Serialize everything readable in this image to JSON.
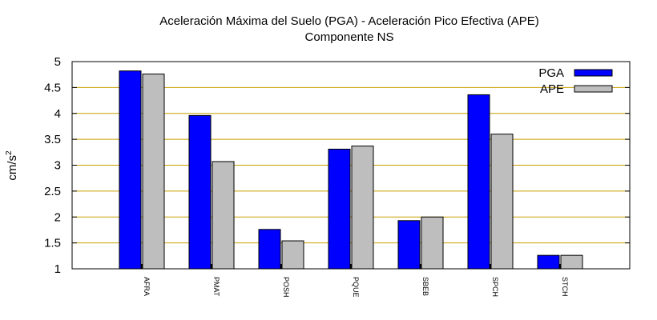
{
  "chart_data": {
    "type": "bar",
    "title": "Aceleración Máxima del Suelo (PGA) -  Aceleración Pico Efectiva (APE)",
    "subtitle": "Componente NS",
    "ylabel": "cm/s",
    "ylabel_superscript": "2",
    "xlabel": "",
    "ylim": [
      1,
      5
    ],
    "yticks": [
      "1",
      "1.5",
      "2",
      "2.5",
      "3",
      "3.5",
      "4",
      "4.5",
      "5"
    ],
    "grid": "horizontal",
    "legend_position": "top-right",
    "categories": [
      "AFRA",
      "PMAT",
      "POSH",
      "PQUE",
      "SBEB",
      "SPCH",
      "STCH"
    ],
    "series": [
      {
        "name": "PGA",
        "color": "#0000ff",
        "values": [
          4.82,
          3.96,
          1.76,
          3.31,
          1.93,
          4.36,
          1.26
        ]
      },
      {
        "name": "APE",
        "color": "#bebebe",
        "values": [
          4.76,
          3.07,
          1.54,
          3.37,
          2.0,
          3.6,
          1.26
        ]
      }
    ],
    "gridline_color": "#c8a000"
  }
}
